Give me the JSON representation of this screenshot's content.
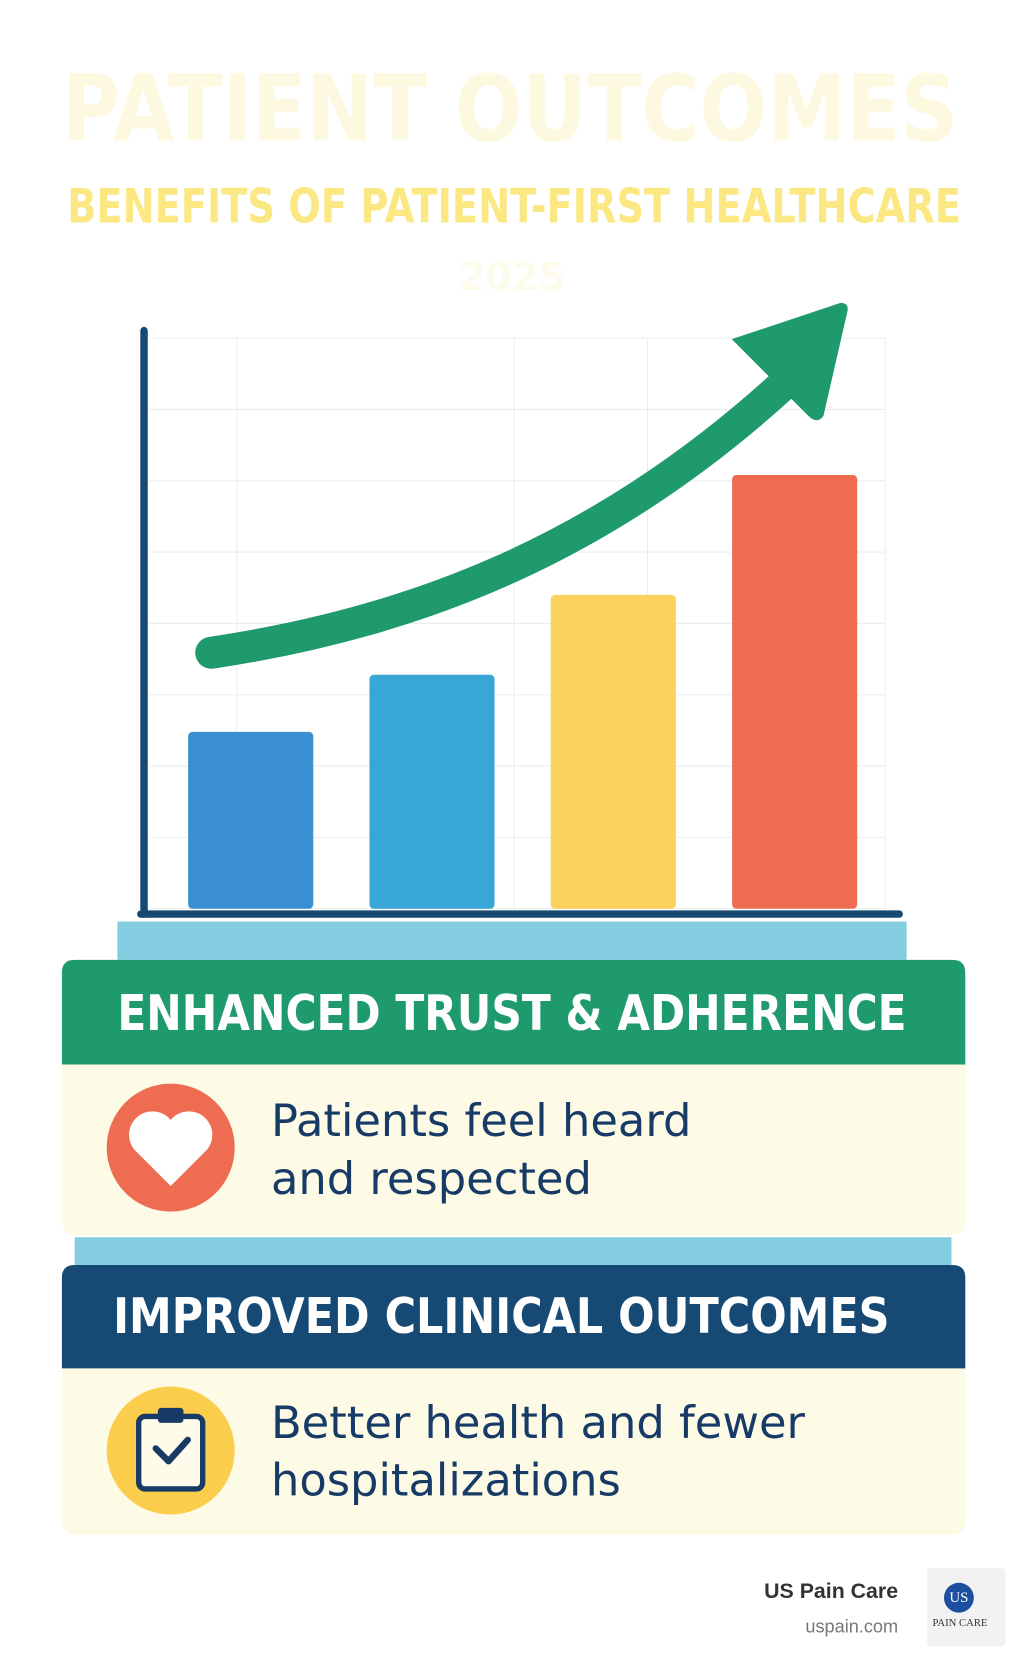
{
  "header": {
    "title": "PATIENT OUTCOMES",
    "subtitle": "BENEFITS OF PATIENT-FIRST HEALTHCARE",
    "year": "2025"
  },
  "chart_data": {
    "type": "bar",
    "values": [
      31,
      41,
      55,
      76
    ],
    "colors": [
      "#3a8fd0",
      "#38a6d6",
      "#fbd35c",
      "#ee6c52"
    ],
    "ylim": [
      0,
      100
    ],
    "grid": true
  },
  "cards": [
    {
      "title": "ENHANCED TRUST & ADHERENCE",
      "lines": [
        "Patients feel heard",
        "and respected"
      ]
    },
    {
      "title": "IMPROVED CLINICAL OUTCOMES",
      "lines": [
        "Better health and fewer",
        "hospitalizations"
      ]
    }
  ],
  "footer": {
    "brand": "US Pain Care",
    "url": "uspain.com",
    "logo": {
      "initials": "US",
      "text": "PAIN CARE"
    }
  }
}
